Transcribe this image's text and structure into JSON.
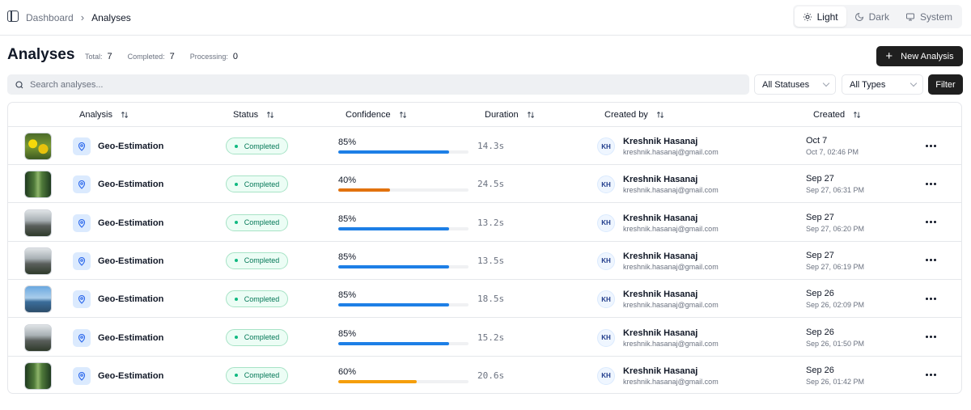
{
  "breadcrumb": {
    "root": "Dashboard",
    "current": "Analyses"
  },
  "theme": {
    "options": [
      "Light",
      "Dark",
      "System"
    ],
    "active": "Light"
  },
  "page": {
    "title": "Analyses",
    "stats": [
      {
        "label": "Total:",
        "value": "7"
      },
      {
        "label": "Completed:",
        "value": "7"
      },
      {
        "label": "Processing:",
        "value": "0"
      }
    ],
    "new_button": "New Analysis"
  },
  "filters": {
    "search_placeholder": "Search analyses...",
    "status_select": "All Statuses",
    "type_select": "All Types",
    "filter_button": "Filter"
  },
  "table": {
    "columns": [
      "Analysis",
      "Status",
      "Confidence",
      "Duration",
      "Created by",
      "Created"
    ],
    "rows": [
      {
        "name": "Geo-Estimation",
        "status": "Completed",
        "confidence": "85%",
        "confidence_value": 0.85,
        "confidence_color": "#1d7fe6",
        "duration": "14.3s",
        "initials": "KH",
        "user": "Kreshnik Hasanaj",
        "email": "kreshnik.hasanaj@gmail.com",
        "date": "Oct 7",
        "datetime": "Oct 7, 02:46 PM",
        "thumb": "flowers"
      },
      {
        "name": "Geo-Estimation",
        "status": "Completed",
        "confidence": "40%",
        "confidence_value": 0.4,
        "confidence_color": "#e2720e",
        "duration": "24.5s",
        "initials": "KH",
        "user": "Kreshnik Hasanaj",
        "email": "kreshnik.hasanaj@gmail.com",
        "date": "Sep 27",
        "datetime": "Sep 27, 06:31 PM",
        "thumb": "forest"
      },
      {
        "name": "Geo-Estimation",
        "status": "Completed",
        "confidence": "85%",
        "confidence_value": 0.85,
        "confidence_color": "#1d7fe6",
        "duration": "13.2s",
        "initials": "KH",
        "user": "Kreshnik Hasanaj",
        "email": "kreshnik.hasanaj@gmail.com",
        "date": "Sep 27",
        "datetime": "Sep 27, 06:20 PM",
        "thumb": "street"
      },
      {
        "name": "Geo-Estimation",
        "status": "Completed",
        "confidence": "85%",
        "confidence_value": 0.85,
        "confidence_color": "#1d7fe6",
        "duration": "13.5s",
        "initials": "KH",
        "user": "Kreshnik Hasanaj",
        "email": "kreshnik.hasanaj@gmail.com",
        "date": "Sep 27",
        "datetime": "Sep 27, 06:19 PM",
        "thumb": "street"
      },
      {
        "name": "Geo-Estimation",
        "status": "Completed",
        "confidence": "85%",
        "confidence_value": 0.85,
        "confidence_color": "#1d7fe6",
        "duration": "18.5s",
        "initials": "KH",
        "user": "Kreshnik Hasanaj",
        "email": "kreshnik.hasanaj@gmail.com",
        "date": "Sep 26",
        "datetime": "Sep 26, 02:09 PM",
        "thumb": "sky"
      },
      {
        "name": "Geo-Estimation",
        "status": "Completed",
        "confidence": "85%",
        "confidence_value": 0.85,
        "confidence_color": "#1d7fe6",
        "duration": "15.2s",
        "initials": "KH",
        "user": "Kreshnik Hasanaj",
        "email": "kreshnik.hasanaj@gmail.com",
        "date": "Sep 26",
        "datetime": "Sep 26, 01:50 PM",
        "thumb": "street"
      },
      {
        "name": "Geo-Estimation",
        "status": "Completed",
        "confidence": "60%",
        "confidence_value": 0.6,
        "confidence_color": "#f59e0b",
        "duration": "20.6s",
        "initials": "KH",
        "user": "Kreshnik Hasanaj",
        "email": "kreshnik.hasanaj@gmail.com",
        "date": "Sep 26",
        "datetime": "Sep 26, 01:42 PM",
        "thumb": "forest"
      }
    ]
  }
}
